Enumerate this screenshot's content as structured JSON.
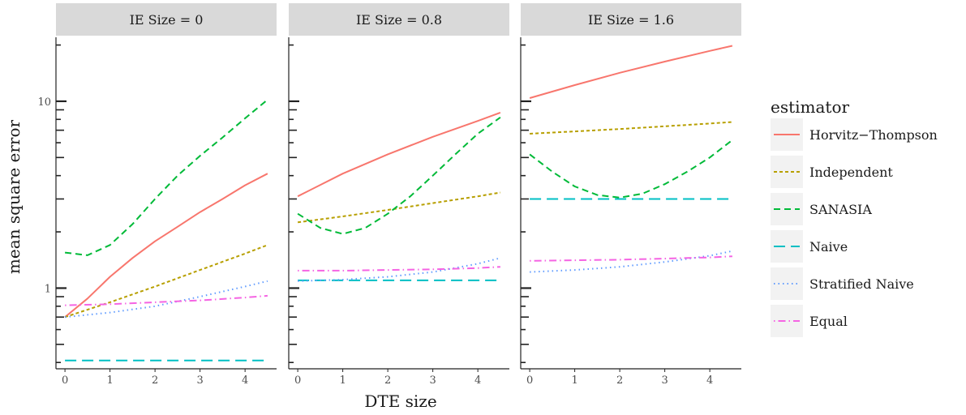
{
  "chart_data": {
    "type": "line",
    "xlabel": "DTE size",
    "ylabel": "mean square error",
    "yscale": "log10",
    "xlim": [
      -0.2,
      4.7
    ],
    "ylim": [
      0.37,
      22
    ],
    "x_ticks": [
      "0",
      "1",
      "2",
      "3",
      "4"
    ],
    "y_ticks": [
      "1",
      "10"
    ],
    "grid": false,
    "legend_title": "estimator",
    "legend_position": "right",
    "panels": [
      {
        "strip": "IE Size = 0",
        "series": [
          {
            "name": "Horvitz−Thompson",
            "color": "#F8766D",
            "dash": "solid",
            "x": [
              0,
              0.5,
              1,
              1.5,
              2,
              2.5,
              3,
              3.5,
              4,
              4.5
            ],
            "y": [
              0.7,
              0.88,
              1.15,
              1.45,
              1.78,
              2.13,
              2.55,
              3.0,
              3.55,
              4.1
            ]
          },
          {
            "name": "Independent",
            "color": "#B79F00",
            "dash": "short",
            "x": [
              0,
              1,
              2,
              3,
              4,
              4.5
            ],
            "y": [
              0.7,
              0.84,
              1.02,
              1.25,
              1.53,
              1.7
            ]
          },
          {
            "name": "SANASIA",
            "color": "#00BA38",
            "dash": "long",
            "x": [
              0,
              0.5,
              1,
              1.5,
              2,
              2.5,
              3,
              3.5,
              4,
              4.5
            ],
            "y": [
              1.55,
              1.5,
              1.7,
              2.2,
              3.0,
              4.0,
              5.1,
              6.4,
              8.1,
              10.2
            ]
          },
          {
            "name": "Naive",
            "color": "#00BFC4",
            "dash": "longdash",
            "x": [
              0,
              4.5
            ],
            "y": [
              0.41,
              0.41
            ]
          },
          {
            "name": "Stratified Naive",
            "color": "#619CFF",
            "dash": "dotted",
            "x": [
              0,
              1,
              2,
              3,
              4,
              4.5
            ],
            "y": [
              0.7,
              0.74,
              0.8,
              0.9,
              1.02,
              1.09
            ]
          },
          {
            "name": "Equal",
            "color": "#F564E3",
            "dash": "dotdash",
            "x": [
              0,
              1,
              2,
              3,
              4,
              4.5
            ],
            "y": [
              0.81,
              0.82,
              0.84,
              0.86,
              0.89,
              0.91
            ]
          }
        ]
      },
      {
        "strip": "IE Size = 0.8",
        "series": [
          {
            "name": "Horvitz−Thompson",
            "color": "#F8766D",
            "dash": "solid",
            "x": [
              0,
              1,
              2,
              3,
              4,
              4.5
            ],
            "y": [
              3.1,
              4.1,
              5.2,
              6.45,
              7.85,
              8.7
            ]
          },
          {
            "name": "Independent",
            "color": "#B79F00",
            "dash": "short",
            "x": [
              0,
              1,
              2,
              3,
              4,
              4.5
            ],
            "y": [
              2.25,
              2.42,
              2.62,
              2.85,
              3.1,
              3.25
            ]
          },
          {
            "name": "SANASIA",
            "color": "#00BA38",
            "dash": "long",
            "x": [
              0,
              0.5,
              1,
              1.5,
              2,
              2.5,
              3,
              3.5,
              4,
              4.5
            ],
            "y": [
              2.5,
              2.1,
              1.95,
              2.1,
              2.5,
              3.1,
              4.0,
              5.2,
              6.7,
              8.2
            ]
          },
          {
            "name": "Naive",
            "color": "#00BFC4",
            "dash": "longdash",
            "x": [
              0,
              4.5
            ],
            "y": [
              1.1,
              1.1
            ]
          },
          {
            "name": "Stratified Naive",
            "color": "#619CFF",
            "dash": "dotted",
            "x": [
              0,
              1,
              2,
              3,
              4,
              4.5
            ],
            "y": [
              1.09,
              1.11,
              1.15,
              1.22,
              1.35,
              1.45
            ]
          },
          {
            "name": "Equal",
            "color": "#F564E3",
            "dash": "dotdash",
            "x": [
              0,
              1,
              2,
              3,
              4,
              4.5
            ],
            "y": [
              1.24,
              1.24,
              1.25,
              1.26,
              1.28,
              1.3
            ]
          }
        ]
      },
      {
        "strip": "IE Size = 1.6",
        "series": [
          {
            "name": "Horvitz−Thompson",
            "color": "#F8766D",
            "dash": "solid",
            "x": [
              0,
              1,
              2,
              3,
              4,
              4.5
            ],
            "y": [
              10.4,
              12.2,
              14.2,
              16.3,
              18.6,
              19.8
            ]
          },
          {
            "name": "Independent",
            "color": "#B79F00",
            "dash": "short",
            "x": [
              0,
              1,
              2,
              3,
              4,
              4.5
            ],
            "y": [
              6.7,
              6.9,
              7.1,
              7.35,
              7.6,
              7.75
            ]
          },
          {
            "name": "SANASIA",
            "color": "#00BA38",
            "dash": "long",
            "x": [
              0,
              0.5,
              1,
              1.5,
              2,
              2.5,
              3,
              3.5,
              4,
              4.5
            ],
            "y": [
              5.2,
              4.2,
              3.5,
              3.15,
              3.05,
              3.2,
              3.6,
              4.2,
              5.0,
              6.2
            ]
          },
          {
            "name": "Naive",
            "color": "#00BFC4",
            "dash": "longdash",
            "x": [
              0,
              4.5
            ],
            "y": [
              3.0,
              3.0
            ]
          },
          {
            "name": "Stratified Naive",
            "color": "#619CFF",
            "dash": "dotted",
            "x": [
              0,
              1,
              2,
              3,
              4,
              4.5
            ],
            "y": [
              1.22,
              1.25,
              1.3,
              1.38,
              1.49,
              1.58
            ]
          },
          {
            "name": "Equal",
            "color": "#F564E3",
            "dash": "dotdash",
            "x": [
              0,
              1,
              2,
              3,
              4,
              4.5
            ],
            "y": [
              1.4,
              1.41,
              1.42,
              1.44,
              1.46,
              1.48
            ]
          }
        ]
      }
    ],
    "legend": [
      {
        "name": "Horvitz−Thompson",
        "color": "#F8766D",
        "dash": "solid"
      },
      {
        "name": "Independent",
        "color": "#B79F00",
        "dash": "short"
      },
      {
        "name": "SANASIA",
        "color": "#00BA38",
        "dash": "long"
      },
      {
        "name": "Naive",
        "color": "#00BFC4",
        "dash": "longdash"
      },
      {
        "name": "Stratified Naive",
        "color": "#619CFF",
        "dash": "dotted"
      },
      {
        "name": "Equal",
        "color": "#F564E3",
        "dash": "dotdash"
      }
    ]
  }
}
